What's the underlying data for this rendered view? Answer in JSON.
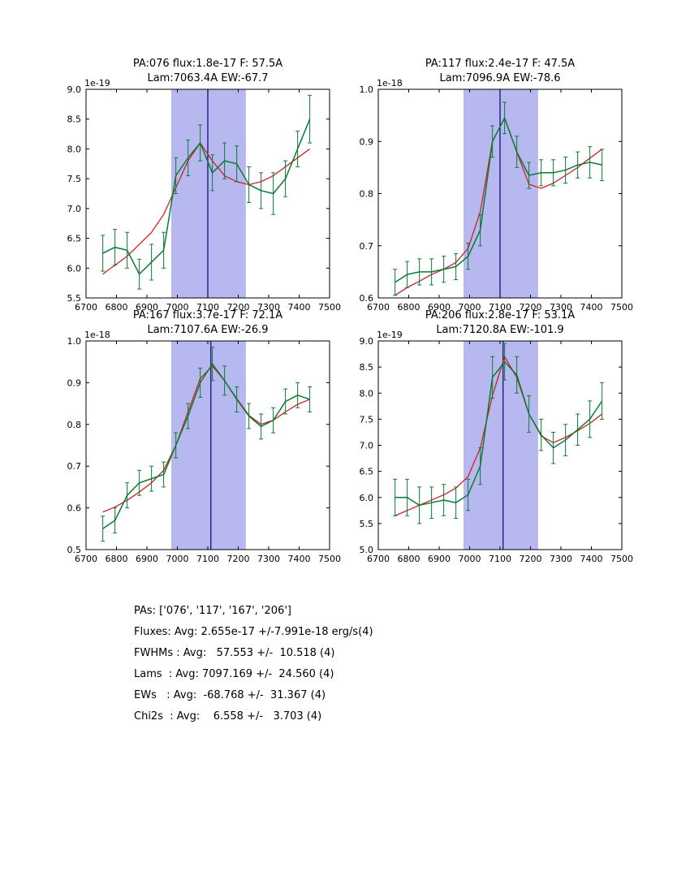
{
  "colors": {
    "axes": "#000000",
    "data_line": "#0b7a35",
    "fit_line": "#cc2222",
    "band": "#b8b8f0",
    "vline": "#000080"
  },
  "summary": {
    "lines": [
      "PAs: ['076', '117', '167', '206']",
      "Fluxes: Avg: 2.655e-17 +/-7.991e-18 erg/s(4)",
      "FWHMs : Avg:   57.553 +/-  10.518 (4)",
      "Lams  : Avg: 7097.169 +/-  24.560 (4)",
      "EWs   : Avg:  -68.768 +/-  31.367 (4)",
      "Chi2s  : Avg:    6.558 +/-   3.703 (4)"
    ]
  },
  "chart_data": [
    {
      "type": "line",
      "title_line1": "PA:076 flux:1.8e-17 F: 57.5A",
      "title_line2": "Lam:7063.4A EW:-67.7",
      "offset": "1e-19",
      "xlim": [
        6700,
        7500
      ],
      "ylim": [
        5.5,
        9.0
      ],
      "xticks": [
        6700,
        6800,
        6900,
        7000,
        7100,
        7200,
        7300,
        7400,
        7500
      ],
      "yticks": [
        5.5,
        6.0,
        6.5,
        7.0,
        7.5,
        8.0,
        8.5,
        9.0
      ],
      "ydec": 1,
      "band": [
        6980,
        7225
      ],
      "vline": 7100,
      "x": [
        6755,
        6795,
        6835,
        6875,
        6915,
        6955,
        6995,
        7035,
        7075,
        7115,
        7155,
        7195,
        7235,
        7275,
        7315,
        7355,
        7395,
        7435
      ],
      "y": [
        6.25,
        6.35,
        6.3,
        5.9,
        6.1,
        6.3,
        7.55,
        7.85,
        8.1,
        7.6,
        7.8,
        7.75,
        7.4,
        7.3,
        7.25,
        7.5,
        8.0,
        8.5
      ],
      "yerr": [
        0.3,
        0.3,
        0.3,
        0.25,
        0.3,
        0.3,
        0.3,
        0.3,
        0.3,
        0.3,
        0.3,
        0.3,
        0.3,
        0.3,
        0.35,
        0.3,
        0.3,
        0.4
      ],
      "fit_y": [
        5.9,
        6.05,
        6.2,
        6.4,
        6.6,
        6.9,
        7.35,
        7.8,
        8.1,
        7.8,
        7.55,
        7.45,
        7.4,
        7.45,
        7.55,
        7.7,
        7.85,
        8.0
      ]
    },
    {
      "type": "line",
      "title_line1": "PA:117 flux:2.4e-17 F: 47.5A",
      "title_line2": "Lam:7096.9A EW:-78.6",
      "offset": "1e-18",
      "xlim": [
        6700,
        7500
      ],
      "ylim": [
        0.6,
        1.0
      ],
      "xticks": [
        6700,
        6800,
        6900,
        7000,
        7100,
        7200,
        7300,
        7400,
        7500
      ],
      "yticks": [
        0.6,
        0.7,
        0.8,
        0.9,
        1.0
      ],
      "ydec": 1,
      "band": [
        6980,
        7225
      ],
      "vline": 7100,
      "x": [
        6755,
        6795,
        6835,
        6875,
        6915,
        6955,
        6995,
        7035,
        7075,
        7115,
        7155,
        7195,
        7235,
        7275,
        7315,
        7355,
        7395,
        7435
      ],
      "y": [
        0.63,
        0.645,
        0.65,
        0.65,
        0.655,
        0.66,
        0.68,
        0.73,
        0.9,
        0.945,
        0.88,
        0.835,
        0.84,
        0.84,
        0.845,
        0.855,
        0.86,
        0.855
      ],
      "yerr": [
        0.025,
        0.025,
        0.025,
        0.025,
        0.025,
        0.025,
        0.025,
        0.03,
        0.03,
        0.03,
        0.03,
        0.025,
        0.025,
        0.025,
        0.025,
        0.025,
        0.03,
        0.03
      ],
      "fit_y": [
        0.605,
        0.62,
        0.632,
        0.645,
        0.655,
        0.668,
        0.695,
        0.765,
        0.9,
        0.945,
        0.88,
        0.818,
        0.81,
        0.82,
        0.835,
        0.85,
        0.868,
        0.885
      ]
    },
    {
      "type": "line",
      "title_line1": "PA:167 flux:3.7e-17 F: 72.1A",
      "title_line2": "Lam:7107.6A EW:-26.9",
      "offset": "1e-18",
      "xlim": [
        6700,
        7500
      ],
      "ylim": [
        0.5,
        1.0
      ],
      "xticks": [
        6700,
        6800,
        6900,
        7000,
        7100,
        7200,
        7300,
        7400,
        7500
      ],
      "yticks": [
        0.5,
        0.6,
        0.7,
        0.8,
        0.9,
        1.0
      ],
      "ydec": 1,
      "band": [
        6980,
        7225
      ],
      "vline": 7110,
      "x": [
        6755,
        6795,
        6835,
        6875,
        6915,
        6955,
        6995,
        7035,
        7075,
        7115,
        7155,
        7195,
        7235,
        7275,
        7315,
        7355,
        7395,
        7435
      ],
      "y": [
        0.55,
        0.57,
        0.63,
        0.66,
        0.67,
        0.68,
        0.75,
        0.82,
        0.9,
        0.945,
        0.905,
        0.86,
        0.82,
        0.795,
        0.81,
        0.855,
        0.87,
        0.86
      ],
      "yerr": [
        0.03,
        0.03,
        0.03,
        0.03,
        0.03,
        0.03,
        0.03,
        0.03,
        0.035,
        0.04,
        0.035,
        0.03,
        0.03,
        0.03,
        0.03,
        0.03,
        0.03,
        0.03
      ],
      "fit_y": [
        0.59,
        0.602,
        0.618,
        0.638,
        0.66,
        0.69,
        0.75,
        0.83,
        0.91,
        0.94,
        0.905,
        0.862,
        0.822,
        0.8,
        0.81,
        0.83,
        0.848,
        0.86
      ]
    },
    {
      "type": "line",
      "title_line1": "PA:206 flux:2.8e-17 F: 53.1A",
      "title_line2": "Lam:7120.8A EW:-101.9",
      "offset": "1e-19",
      "xlim": [
        6700,
        7500
      ],
      "ylim": [
        5.0,
        9.0
      ],
      "xticks": [
        6700,
        6800,
        6900,
        7000,
        7100,
        7200,
        7300,
        7400,
        7500
      ],
      "yticks": [
        5.0,
        5.5,
        6.0,
        6.5,
        7.0,
        7.5,
        8.0,
        8.5,
        9.0
      ],
      "ydec": 1,
      "band": [
        6980,
        7225
      ],
      "vline": 7110,
      "x": [
        6755,
        6795,
        6835,
        6875,
        6915,
        6955,
        6995,
        7035,
        7075,
        7115,
        7155,
        7195,
        7235,
        7275,
        7315,
        7355,
        7395,
        7435
      ],
      "y": [
        6.0,
        6.0,
        5.85,
        5.9,
        5.95,
        5.9,
        6.05,
        6.6,
        8.3,
        8.6,
        8.35,
        7.6,
        7.2,
        6.95,
        7.1,
        7.3,
        7.5,
        7.85
      ],
      "yerr": [
        0.35,
        0.35,
        0.35,
        0.3,
        0.3,
        0.3,
        0.3,
        0.35,
        0.4,
        0.35,
        0.35,
        0.35,
        0.3,
        0.3,
        0.3,
        0.3,
        0.35,
        0.35
      ],
      "fit_y": [
        5.65,
        5.75,
        5.85,
        5.95,
        6.05,
        6.18,
        6.4,
        6.95,
        7.95,
        8.7,
        8.3,
        7.6,
        7.18,
        7.05,
        7.15,
        7.28,
        7.42,
        7.6
      ]
    }
  ]
}
